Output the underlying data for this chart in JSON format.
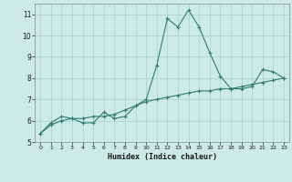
{
  "xlabel": "Humidex (Indice chaleur)",
  "x_values": [
    0,
    1,
    2,
    3,
    4,
    5,
    6,
    7,
    8,
    9,
    10,
    11,
    12,
    13,
    14,
    15,
    16,
    17,
    18,
    19,
    20,
    21,
    22,
    23
  ],
  "y_main": [
    5.4,
    5.9,
    6.2,
    6.1,
    5.9,
    5.9,
    6.4,
    6.1,
    6.2,
    6.7,
    7.0,
    8.6,
    10.8,
    10.4,
    11.2,
    10.4,
    9.2,
    8.1,
    7.5,
    7.5,
    7.6,
    8.4,
    8.3,
    8.0
  ],
  "y_ref": [
    5.4,
    5.8,
    6.0,
    6.1,
    6.1,
    6.2,
    6.2,
    6.3,
    6.5,
    6.7,
    6.9,
    7.0,
    7.1,
    7.2,
    7.3,
    7.4,
    7.4,
    7.5,
    7.5,
    7.6,
    7.7,
    7.8,
    7.9,
    8.0
  ],
  "line_color": "#2e7d6e",
  "bg_color": "#cceae6",
  "grid_color": "#aacfcb",
  "xlim": [
    -0.5,
    23.5
  ],
  "ylim": [
    5.0,
    11.5
  ],
  "yticks": [
    5,
    6,
    7,
    8,
    9,
    10,
    11
  ],
  "xticks": [
    0,
    1,
    2,
    3,
    4,
    5,
    6,
    7,
    8,
    9,
    10,
    11,
    12,
    13,
    14,
    15,
    16,
    17,
    18,
    19,
    20,
    21,
    22,
    23
  ]
}
